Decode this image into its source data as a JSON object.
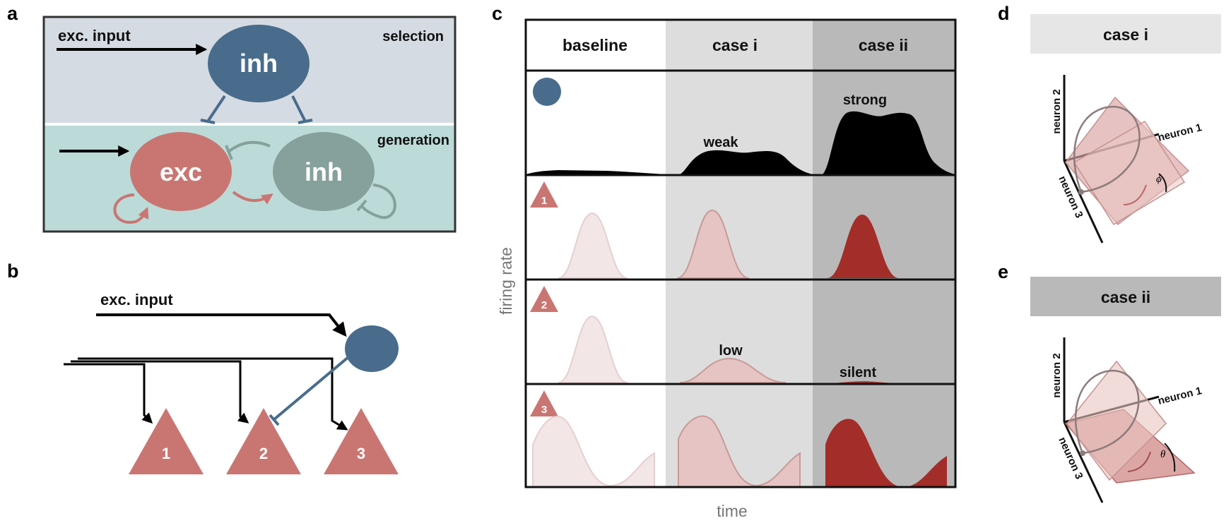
{
  "colors": {
    "inh_blue": "#496c8c",
    "exc_red": "#c97673",
    "inh_green": "#86a09b",
    "selection_bg": "#d4dbe2",
    "generation_bg": "#bcdbd8",
    "case_i_bg": "#dddddd",
    "case_ii_bg": "#b9b9b9",
    "dark_red": "#a32d29",
    "light_pink": "#e6c4c3",
    "pale_pink": "#f3e6e6"
  },
  "panels": {
    "a": {
      "letter": "a",
      "exc_input": "exc. input",
      "selection": "selection",
      "generation": "generation",
      "inh_top": "inh",
      "exc": "exc",
      "inh_bottom": "inh"
    },
    "b": {
      "letter": "b",
      "exc_input": "exc. input",
      "neurons": [
        "1",
        "2",
        "3"
      ]
    },
    "c": {
      "letter": "c",
      "columns": [
        "baseline",
        "case i",
        "case ii"
      ],
      "ylabel": "firing rate",
      "xlabel": "time",
      "row_markers": [
        "1",
        "2",
        "3"
      ],
      "annotations": {
        "weak": "weak",
        "strong": "strong",
        "low": "low",
        "silent": "silent"
      }
    },
    "d": {
      "letter": "d",
      "title": "case i",
      "axes": [
        "neuron 1",
        "neuron 2",
        "neuron 3"
      ],
      "angle": "ϕ"
    },
    "e": {
      "letter": "e",
      "title": "case ii",
      "axes": [
        "neuron 1",
        "neuron 2",
        "neuron 3"
      ],
      "angle": "θ"
    }
  }
}
